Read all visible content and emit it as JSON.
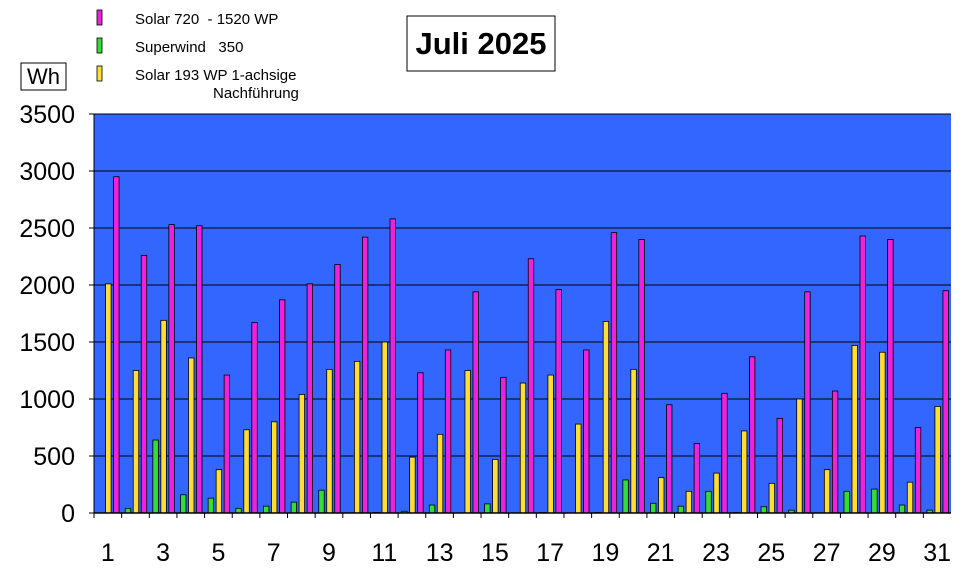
{
  "chart_data": {
    "type": "bar",
    "title": "Juli 2025",
    "ylabel": "Wh",
    "ylim": [
      0,
      3500
    ],
    "yticks": [
      0,
      500,
      1000,
      1500,
      2000,
      2500,
      3000,
      3500
    ],
    "grid": true,
    "legend_position": "top-left",
    "categories": [
      "1",
      "2",
      "3",
      "4",
      "5",
      "6",
      "7",
      "8",
      "9",
      "10",
      "11",
      "12",
      "13",
      "14",
      "15",
      "16",
      "17",
      "18",
      "19",
      "20",
      "21",
      "22",
      "23",
      "24",
      "25",
      "26",
      "27",
      "28",
      "29",
      "30",
      "31"
    ],
    "xtick_labels": [
      "1",
      "3",
      "5",
      "7",
      "9",
      "11",
      "13",
      "15",
      "17",
      "19",
      "21",
      "23",
      "25",
      "27",
      "29",
      "31"
    ],
    "series": [
      {
        "name": "Superwind   350",
        "color": "#33dd33",
        "values": [
          0,
          40,
          640,
          160,
          130,
          40,
          60,
          95,
          200,
          0,
          5,
          15,
          70,
          0,
          80,
          0,
          5,
          0,
          5,
          290,
          85,
          60,
          190,
          5,
          55,
          25,
          0,
          190,
          210,
          70,
          25
        ]
      },
      {
        "name": "Solar 193 WP 1-achsige Nachführung",
        "legend_lines": [
          "Solar 193 WP 1-achsige",
          "Nachführung"
        ],
        "color": "#ffdd33",
        "values": [
          2010,
          1250,
          1690,
          1360,
          380,
          730,
          800,
          1040,
          1260,
          1330,
          1500,
          490,
          690,
          1250,
          470,
          1140,
          1210,
          780,
          1680,
          1260,
          310,
          190,
          350,
          720,
          260,
          1000,
          380,
          1470,
          1410,
          270,
          935
        ]
      },
      {
        "name": "Solar 720  - 1520 WP",
        "color": "#ee22dd",
        "values": [
          2950,
          2260,
          2530,
          2520,
          1210,
          1670,
          1870,
          2010,
          2180,
          2420,
          2580,
          1230,
          1430,
          1940,
          1190,
          2230,
          1960,
          1430,
          2460,
          2400,
          950,
          610,
          1050,
          1370,
          830,
          1940,
          1070,
          2430,
          2400,
          750,
          1950
        ]
      }
    ],
    "legend_order": [
      2,
      0,
      1
    ],
    "plot_background": "#3366ff"
  }
}
